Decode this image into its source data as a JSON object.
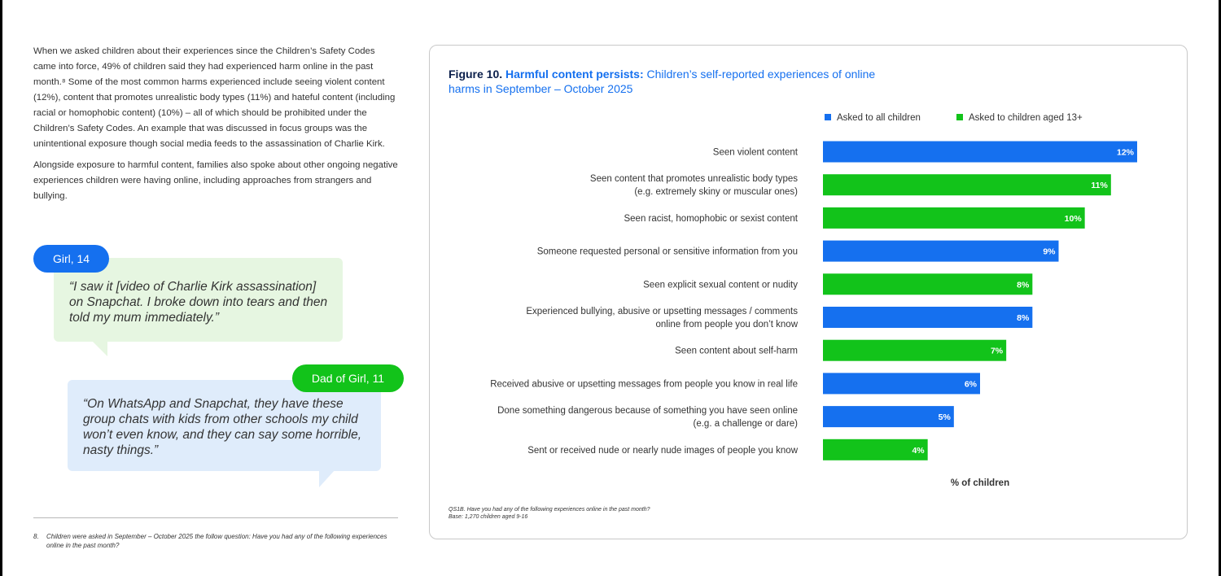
{
  "body_text": {
    "p1": "When we asked children about their experiences since the Children’s Safety Codes came into force, 49% of children said they had experienced harm online in the past month.⁸ Some of the most common harms experienced include seeing violent content (12%), content that promotes unrealistic body types (11%) and hateful content (including racial or homophobic content) (10%) – all of which should be prohibited under the Children’s Safety Codes. An example that was discussed in focus groups was the unintentional exposure though social media feeds to the assassination of Charlie Kirk.",
    "p2": "Alongside exposure to harmful content, families also spoke about other ongoing negative experiences children were having online, including approaches from strangers and bullying."
  },
  "quotes": [
    {
      "speaker": "Girl, 14",
      "text": "“I saw it [video of Charlie Kirk assassination] on Snapchat. I broke down into tears and then told my mum immediately.”"
    },
    {
      "speaker": "Dad of Girl, 11",
      "text": "“On WhatsApp and Snapchat, they have these group chats with kids from other schools my child won’t even know, and they can say some horrible, nasty things.”"
    }
  ],
  "footnote": {
    "number": "8.",
    "text": "Children were asked in September – October 2025 the follow question: Have you had any of the following experiences online in the past month?"
  },
  "figure": {
    "number": "Figure 10.",
    "bold_title": "Harmful content persists:",
    "subtitle": "Children’s self-reported experiences of online harms in September – October 2025",
    "source_line1": "QS1B. Have you had any of the following experiences online in the past month?",
    "source_line2": "Base: 1,270 children aged 9-16"
  },
  "chart_data": {
    "type": "bar",
    "orientation": "horizontal",
    "xlabel": "% of children",
    "xlim": [
      0,
      12
    ],
    "grid": false,
    "legend_position": "top-right",
    "legend": [
      {
        "key": "all",
        "label": "Asked to all children",
        "color": "#1570ef"
      },
      {
        "key": "13plus",
        "label": "Asked to children aged 13+",
        "color": "#12c31a"
      }
    ],
    "categories": [
      [
        "Seen violent content"
      ],
      [
        "Seen content that promotes unrealistic body types",
        "(e.g. extremely skiny or muscular ones)"
      ],
      [
        "Seen racist, homophobic or sexist content"
      ],
      [
        "Someone requested personal or sensitive information from you"
      ],
      [
        "Seen explicit sexual content or nudity"
      ],
      [
        "Experienced bullying, abusive or upsetting messages / comments",
        "online from people you don’t know"
      ],
      [
        "Seen content about self-harm"
      ],
      [
        "Received abusive or upsetting messages from people you know in real life"
      ],
      [
        "Done something dangerous because of something you have seen online",
        "(e.g. a challenge or dare)"
      ],
      [
        "Sent or received nude or nearly nude images of people you know"
      ]
    ],
    "values": [
      12,
      11,
      10,
      9,
      8,
      8,
      7,
      6,
      5,
      4
    ],
    "value_labels": [
      "12%",
      "11%",
      "10%",
      "9%",
      "8%",
      "8%",
      "7%",
      "6%",
      "5%",
      "4%"
    ],
    "groups": [
      "all",
      "13plus",
      "13plus",
      "all",
      "13plus",
      "all",
      "13plus",
      "all",
      "all",
      "13plus"
    ]
  }
}
